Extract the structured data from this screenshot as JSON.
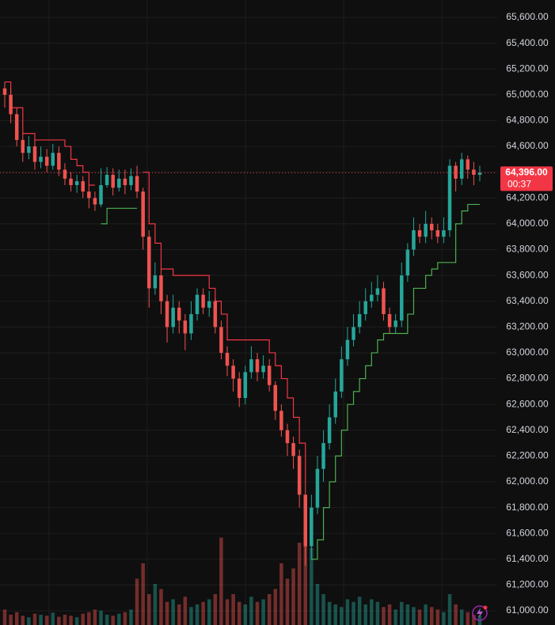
{
  "chart_data": {
    "type": "candlestick",
    "open": [
      65050,
      65000,
      64850,
      64650,
      64550,
      64600,
      64480,
      64520,
      64450,
      64550,
      64420,
      64350,
      64300,
      64330,
      64250,
      64200,
      64150,
      64300,
      64380,
      64280,
      64350,
      64300,
      64370,
      64250,
      63900,
      63500,
      63600,
      63400,
      63200,
      63350,
      63250,
      63150,
      63300,
      63450,
      63350,
      63400,
      63200,
      63000,
      62900,
      62800,
      62650,
      62850,
      62950,
      62850,
      62900,
      62750,
      62550,
      62400,
      62300,
      62200,
      61900,
      61500,
      61800,
      62100,
      62300,
      62500,
      62700,
      62950,
      63100,
      63200,
      63300,
      63400,
      63450,
      63500,
      63300,
      63200,
      63250,
      63600,
      63800,
      63950,
      63900,
      64000,
      63950,
      63900,
      63950,
      64450,
      64350,
      64500,
      64420,
      64380
    ],
    "high": [
      65100,
      65050,
      64900,
      64700,
      64680,
      64650,
      64600,
      64580,
      64620,
      64600,
      64470,
      64400,
      64380,
      64370,
      64300,
      64250,
      64430,
      64440,
      64430,
      64420,
      64420,
      64430,
      64450,
      64280,
      63950,
      63700,
      63650,
      63450,
      63450,
      63400,
      63300,
      63400,
      63500,
      63500,
      63480,
      63420,
      63250,
      63050,
      62950,
      62850,
      62900,
      63050,
      63000,
      62980,
      62950,
      62780,
      62600,
      62450,
      62350,
      62250,
      62000,
      61900,
      62200,
      62400,
      62600,
      62800,
      63050,
      63200,
      63300,
      63400,
      63500,
      63550,
      63600,
      63550,
      63350,
      63300,
      63700,
      63850,
      64050,
      64000,
      64100,
      64050,
      64000,
      64050,
      64500,
      64480,
      64550,
      64530,
      64480,
      64450
    ],
    "low": [
      64900,
      64780,
      64600,
      64480,
      64500,
      64420,
      64430,
      64400,
      64420,
      64370,
      64300,
      64250,
      64240,
      64200,
      64120,
      64100,
      64130,
      64280,
      64220,
      64250,
      64230,
      64260,
      64200,
      63800,
      63350,
      63450,
      63300,
      63080,
      63150,
      63150,
      63020,
      63100,
      63250,
      63300,
      63280,
      63150,
      62950,
      62820,
      62700,
      62580,
      62600,
      62800,
      62780,
      62800,
      62700,
      62480,
      62350,
      62200,
      62100,
      61800,
      61350,
      61400,
      61750,
      62000,
      62250,
      62450,
      62650,
      62900,
      63050,
      63150,
      63250,
      63350,
      63400,
      63250,
      63150,
      63150,
      63200,
      63550,
      63750,
      63850,
      63850,
      63880,
      63850,
      63850,
      63900,
      64250,
      64300,
      64350,
      64300,
      64330
    ],
    "close": [
      65000,
      64850,
      64650,
      64550,
      64600,
      64480,
      64520,
      64450,
      64550,
      64420,
      64350,
      64300,
      64330,
      64250,
      64200,
      64150,
      64300,
      64380,
      64280,
      64350,
      64300,
      64370,
      64250,
      63900,
      63500,
      63600,
      63400,
      63200,
      63350,
      63250,
      63150,
      63300,
      63450,
      63350,
      63400,
      63200,
      63000,
      62900,
      62800,
      62650,
      62850,
      62950,
      62850,
      62900,
      62750,
      62550,
      62400,
      62300,
      62200,
      61900,
      61500,
      61800,
      62100,
      62300,
      62500,
      62700,
      62950,
      63100,
      63200,
      63300,
      63400,
      63450,
      63500,
      63300,
      63200,
      63250,
      63600,
      63800,
      63950,
      63900,
      64000,
      63950,
      63900,
      63950,
      64450,
      64350,
      64500,
      64420,
      64380,
      64396
    ],
    "volume": [
      30,
      20,
      25,
      18,
      15,
      22,
      20,
      18,
      24,
      16,
      20,
      18,
      15,
      22,
      25,
      30,
      28,
      20,
      18,
      22,
      25,
      30,
      90,
      120,
      60,
      80,
      70,
      45,
      50,
      40,
      55,
      35,
      40,
      45,
      50,
      60,
      170,
      50,
      60,
      45,
      40,
      55,
      45,
      50,
      60,
      70,
      120,
      90,
      110,
      160,
      200,
      150,
      80,
      60,
      45,
      40,
      35,
      50,
      45,
      55,
      40,
      50,
      45,
      35,
      40,
      30,
      45,
      40,
      35,
      30,
      40,
      35,
      30,
      25,
      60,
      40,
      30,
      25,
      20,
      18
    ],
    "up_color": "#26a69a",
    "down_color": "#ef5350",
    "supertrend": [
      {
        "color": "#f23645",
        "values": [
          65100,
          64900,
          64900,
          64700,
          64700,
          64650,
          64650,
          64650,
          64650,
          64650,
          64600,
          64500,
          64450,
          64400,
          64300,
          64300,
          null,
          null,
          null,
          null,
          null,
          null,
          null,
          64400,
          64000,
          63850,
          63650,
          63650,
          63600,
          63600,
          63600,
          63600,
          63600,
          63600,
          63500,
          63400,
          63300,
          63100,
          63100,
          63100,
          63100,
          63100,
          63100,
          63100,
          63000,
          62900,
          62800,
          62650,
          62500,
          62300,
          62000,
          null,
          null,
          null,
          null,
          null,
          null,
          null,
          null,
          null,
          null,
          null,
          null,
          null,
          null,
          null,
          null,
          null,
          null,
          null,
          null,
          null,
          null,
          null,
          null,
          null,
          null,
          null,
          null,
          null
        ]
      },
      {
        "color": "#4caf50",
        "values": [
          null,
          null,
          null,
          null,
          null,
          null,
          null,
          null,
          null,
          null,
          null,
          null,
          null,
          null,
          null,
          null,
          64000,
          64120,
          64120,
          64120,
          64120,
          64120,
          64120,
          null,
          null,
          null,
          null,
          null,
          null,
          null,
          null,
          null,
          null,
          null,
          null,
          null,
          null,
          null,
          null,
          null,
          null,
          null,
          null,
          null,
          null,
          null,
          null,
          null,
          null,
          null,
          null,
          61400,
          61550,
          61800,
          62000,
          62200,
          62400,
          62600,
          62700,
          62800,
          62900,
          63000,
          63100,
          63150,
          63150,
          63150,
          63150,
          63300,
          63500,
          63500,
          63600,
          63650,
          63700,
          63700,
          63700,
          64000,
          64100,
          64150,
          64150,
          64150
        ]
      }
    ],
    "ylim": [
      60890,
      65735
    ],
    "yticks": [
      {
        "value": 61000,
        "label": "61,000.00"
      },
      {
        "value": 61200,
        "label": "61,200.00"
      },
      {
        "value": 61400,
        "label": "61,400.00"
      },
      {
        "value": 61600,
        "label": "61,600.00"
      },
      {
        "value": 61800,
        "label": "61,800.00"
      },
      {
        "value": 62000,
        "label": "62,000.00"
      },
      {
        "value": 62200,
        "label": "62,200.00"
      },
      {
        "value": 62400,
        "label": "62,400.00"
      },
      {
        "value": 62600,
        "label": "62,600.00"
      },
      {
        "value": 62800,
        "label": "62,800.00"
      },
      {
        "value": 63000,
        "label": "63,000.00"
      },
      {
        "value": 63200,
        "label": "63,200.00"
      },
      {
        "value": 63400,
        "label": "63,400.00"
      },
      {
        "value": 63600,
        "label": "63,600.00"
      },
      {
        "value": 63800,
        "label": "63,800.00"
      },
      {
        "value": 64000,
        "label": "64,000.00"
      },
      {
        "value": 64200,
        "label": "64,200.00"
      },
      {
        "value": 64400,
        "label": "64,400.00"
      },
      {
        "value": 64600,
        "label": "64,600.00"
      },
      {
        "value": 64800,
        "label": "64,800.00"
      },
      {
        "value": 65000,
        "label": "65,000.00"
      },
      {
        "value": 65200,
        "label": "65,200.00"
      },
      {
        "value": 65400,
        "label": "65,400.00"
      },
      {
        "value": 65600,
        "label": "65,600.00"
      }
    ],
    "grid": true,
    "last_price": {
      "value": 64396,
      "label": "64,396.00",
      "color": "#f23645"
    },
    "countdown": "00:37"
  }
}
